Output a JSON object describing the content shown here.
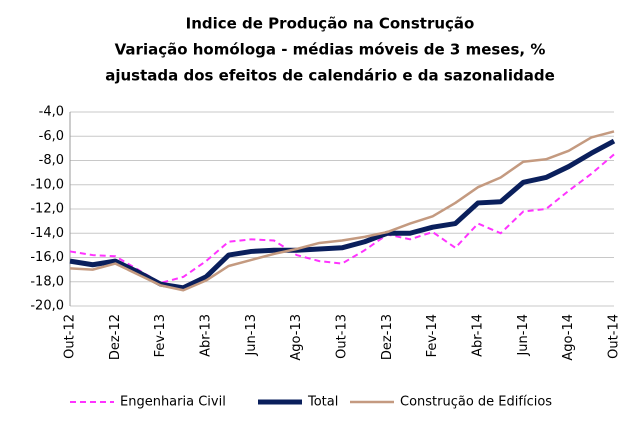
{
  "chart_data": {
    "type": "line",
    "title": "Indice de Produção na Construção",
    "subtitle": [
      "Variação homóloga - médias móveis de 3 meses, %",
      "ajustada dos efeitos de calendário  e da sazonalidade"
    ],
    "categories": [
      "Out-12",
      null,
      "Dez-12",
      null,
      "Fev-13",
      null,
      "Abr-13",
      null,
      "Jun-13",
      null,
      "Ago-13",
      null,
      "Out-13",
      null,
      "Dez-13",
      null,
      "Fev-14",
      null,
      "Abr-14",
      null,
      "Jun-14",
      null,
      "Ago-14",
      null,
      "Out-14"
    ],
    "series": [
      {
        "name": "Engenharia Civil",
        "color": "#ff33ff",
        "dashed": true,
        "line_width": 2,
        "values": [
          -15.5,
          -15.8,
          -15.9,
          -17.0,
          -18.1,
          -17.6,
          -16.3,
          -14.7,
          -14.5,
          -14.6,
          -15.8,
          -16.3,
          -16.5,
          -15.4,
          -14.1,
          -14.5,
          -13.9,
          -15.2,
          -13.2,
          -14.0,
          -12.2,
          -12.0,
          -10.5,
          -9.1,
          -7.5
        ]
      },
      {
        "name": "Total",
        "color": "#0a1f5c",
        "dashed": false,
        "line_width": 5,
        "values": [
          -16.3,
          -16.6,
          -16.3,
          -17.2,
          -18.2,
          -18.5,
          -17.6,
          -15.8,
          -15.5,
          -15.4,
          -15.4,
          -15.3,
          -15.2,
          -14.7,
          -14.0,
          -14.0,
          -13.5,
          -13.2,
          -11.5,
          -11.4,
          -9.8,
          -9.4,
          -8.5,
          -7.4,
          -6.4
        ]
      },
      {
        "name": "Construção de Edifícios",
        "color": "#c49a80",
        "dashed": false,
        "line_width": 2.5,
        "values": [
          -16.9,
          -17.0,
          -16.5,
          -17.4,
          -18.3,
          -18.7,
          -17.9,
          -16.7,
          -16.2,
          -15.7,
          -15.3,
          -14.8,
          -14.6,
          -14.3,
          -13.9,
          -13.2,
          -12.6,
          -11.5,
          -10.2,
          -9.4,
          -8.1,
          -7.9,
          -7.2,
          -6.1,
          -5.6
        ]
      }
    ],
    "ylim": [
      -20,
      -4
    ],
    "yticks": [
      {
        "value": -20,
        "label": "-20,0"
      },
      {
        "value": -18,
        "label": "-18,0"
      },
      {
        "value": -16,
        "label": "-16,0"
      },
      {
        "value": -14,
        "label": "-14,0"
      },
      {
        "value": -12,
        "label": "-12,0"
      },
      {
        "value": -10,
        "label": "-10,0"
      },
      {
        "value": -8,
        "label": "-8,0"
      },
      {
        "value": -6,
        "label": "-6,0"
      },
      {
        "value": -4,
        "label": "-4,0"
      }
    ],
    "grid": true
  }
}
